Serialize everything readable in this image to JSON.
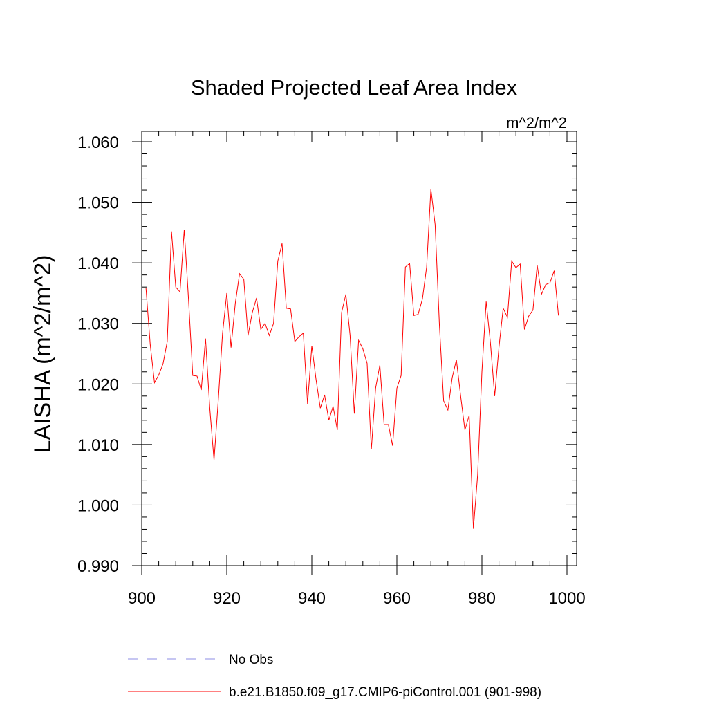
{
  "chart_data": {
    "type": "line",
    "title": "Shaded Projected Leaf Area Index",
    "units_label": "m^2/m^2",
    "ylabel": "LAISHA  (m^2/m^2)",
    "xlabel": "",
    "xlim": [
      900,
      1000
    ],
    "ylim": [
      0.99,
      1.06
    ],
    "xticks": [
      "900",
      "920",
      "940",
      "960",
      "980",
      "1000"
    ],
    "yticks": [
      "0.990",
      "1.000",
      "1.010",
      "1.020",
      "1.030",
      "1.040",
      "1.050",
      "1.060"
    ],
    "grid": false,
    "legend_position": "bottom",
    "series": [
      {
        "name": "b.e21.B1850.f09_g17.CMIP6-piControl.001 (901-998)",
        "color": "#ff0000",
        "style": "solid",
        "x": [
          901,
          902,
          903,
          904,
          905,
          906,
          907,
          908,
          909,
          910,
          911,
          912,
          913,
          914,
          915,
          916,
          917,
          918,
          919,
          920,
          921,
          922,
          923,
          924,
          925,
          926,
          927,
          928,
          929,
          930,
          931,
          932,
          933,
          934,
          935,
          936,
          937,
          938,
          939,
          940,
          941,
          942,
          943,
          944,
          945,
          946,
          947,
          948,
          949,
          950,
          951,
          952,
          953,
          954,
          955,
          956,
          957,
          958,
          959,
          960,
          961,
          962,
          963,
          964,
          965,
          966,
          967,
          968,
          969,
          970,
          971,
          972,
          973,
          974,
          975,
          976,
          977,
          978,
          979,
          980,
          981,
          982,
          983,
          984,
          985,
          986,
          987,
          988,
          989,
          990,
          991,
          992,
          993,
          994,
          995,
          996,
          997,
          998
        ],
        "values": [
          1.0358,
          1.0265,
          1.0202,
          1.0215,
          1.0233,
          1.027,
          1.0452,
          1.036,
          1.0352,
          1.0455,
          1.034,
          1.0214,
          1.0213,
          1.019,
          1.0275,
          1.016,
          1.0074,
          1.0173,
          1.0283,
          1.035,
          1.026,
          1.0333,
          1.0382,
          1.0373,
          1.028,
          1.0318,
          1.0342,
          1.029,
          1.03,
          1.028,
          1.03,
          1.0403,
          1.0432,
          1.0325,
          1.0324,
          1.027,
          1.0278,
          1.0284,
          1.0167,
          1.0263,
          1.0207,
          1.016,
          1.0182,
          1.014,
          1.0163,
          1.0124,
          1.0318,
          1.0348,
          1.028,
          1.0151,
          1.0272,
          1.0258,
          1.0234,
          1.0092,
          1.0193,
          1.0231,
          1.0133,
          1.0133,
          1.0098,
          1.0193,
          1.0214,
          1.0393,
          1.0399,
          1.0313,
          1.0315,
          1.034,
          1.0393,
          1.0522,
          1.0463,
          1.0298,
          1.0172,
          1.0157,
          1.021,
          1.024,
          1.018,
          1.0124,
          1.0148,
          0.9961,
          1.005,
          1.022,
          1.0336,
          1.0268,
          1.018,
          1.026,
          1.0325,
          1.031,
          1.0403,
          1.0392,
          1.0398,
          1.029,
          1.0312,
          1.0322,
          1.0396,
          1.0348,
          1.0364,
          1.0367,
          1.0387,
          1.0313
        ]
      },
      {
        "name": "No Obs",
        "color": "#8c8ce6",
        "style": "dashed",
        "x": [],
        "values": []
      }
    ]
  }
}
